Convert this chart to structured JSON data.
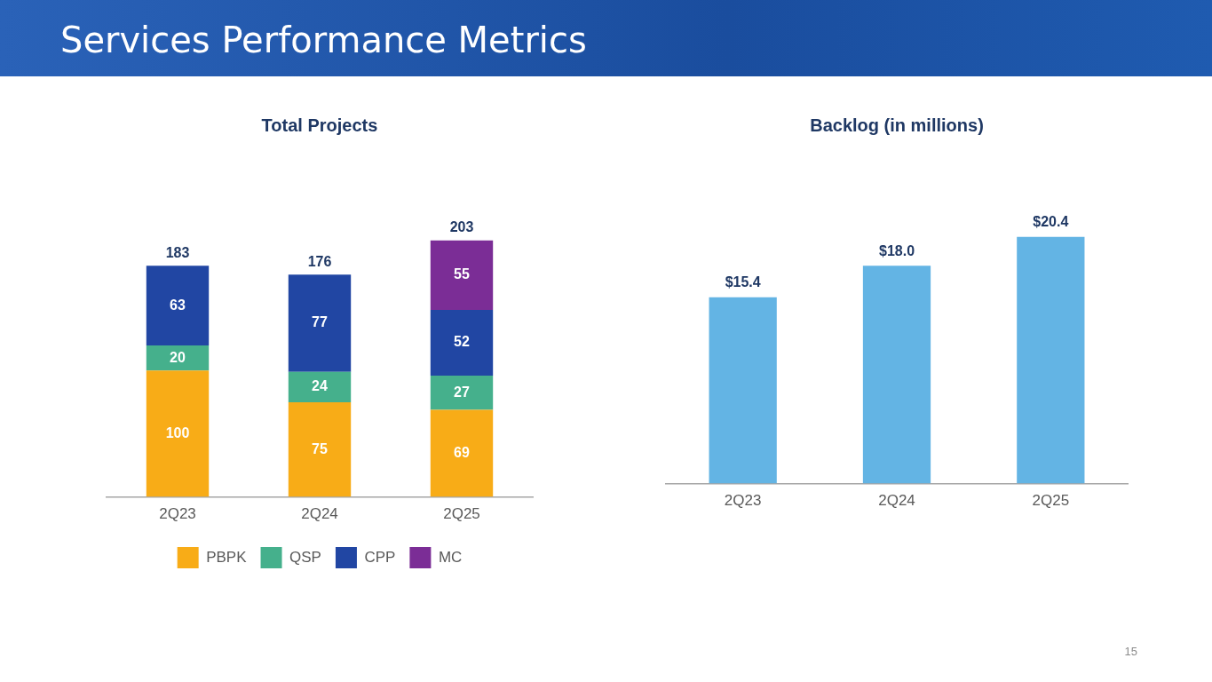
{
  "chart_data": [
    {
      "type": "bar",
      "title": "Total Projects",
      "categories": [
        "2Q23",
        "2Q24",
        "2Q25"
      ],
      "stacked": true,
      "data_labels": true,
      "totals": [
        "183",
        "176",
        "203"
      ],
      "legend": "bottom",
      "series": [
        {
          "name": "PBPK",
          "color": "#f8ac17",
          "values": [
            100,
            75,
            69
          ]
        },
        {
          "name": "QSP",
          "color": "#45b08c",
          "values": [
            20,
            24,
            27
          ]
        },
        {
          "name": "CPP",
          "color": "#2146a3",
          "values": [
            63,
            77,
            52
          ]
        },
        {
          "name": "MC",
          "color": "#7b2d96",
          "values": [
            null,
            null,
            55
          ]
        }
      ],
      "annotations": [
        "Services Performance Metrics",
        "15"
      ]
    },
    {
      "type": "bar",
      "title": "Backlog (in millions)",
      "categories": [
        "2Q23",
        "2Q24",
        "2Q25"
      ],
      "values": [
        15.4,
        18.0,
        20.4
      ],
      "color": "#63b4e4",
      "value_labels": [
        "$15.4",
        "$18.0",
        "$20.4"
      ]
    }
  ]
}
